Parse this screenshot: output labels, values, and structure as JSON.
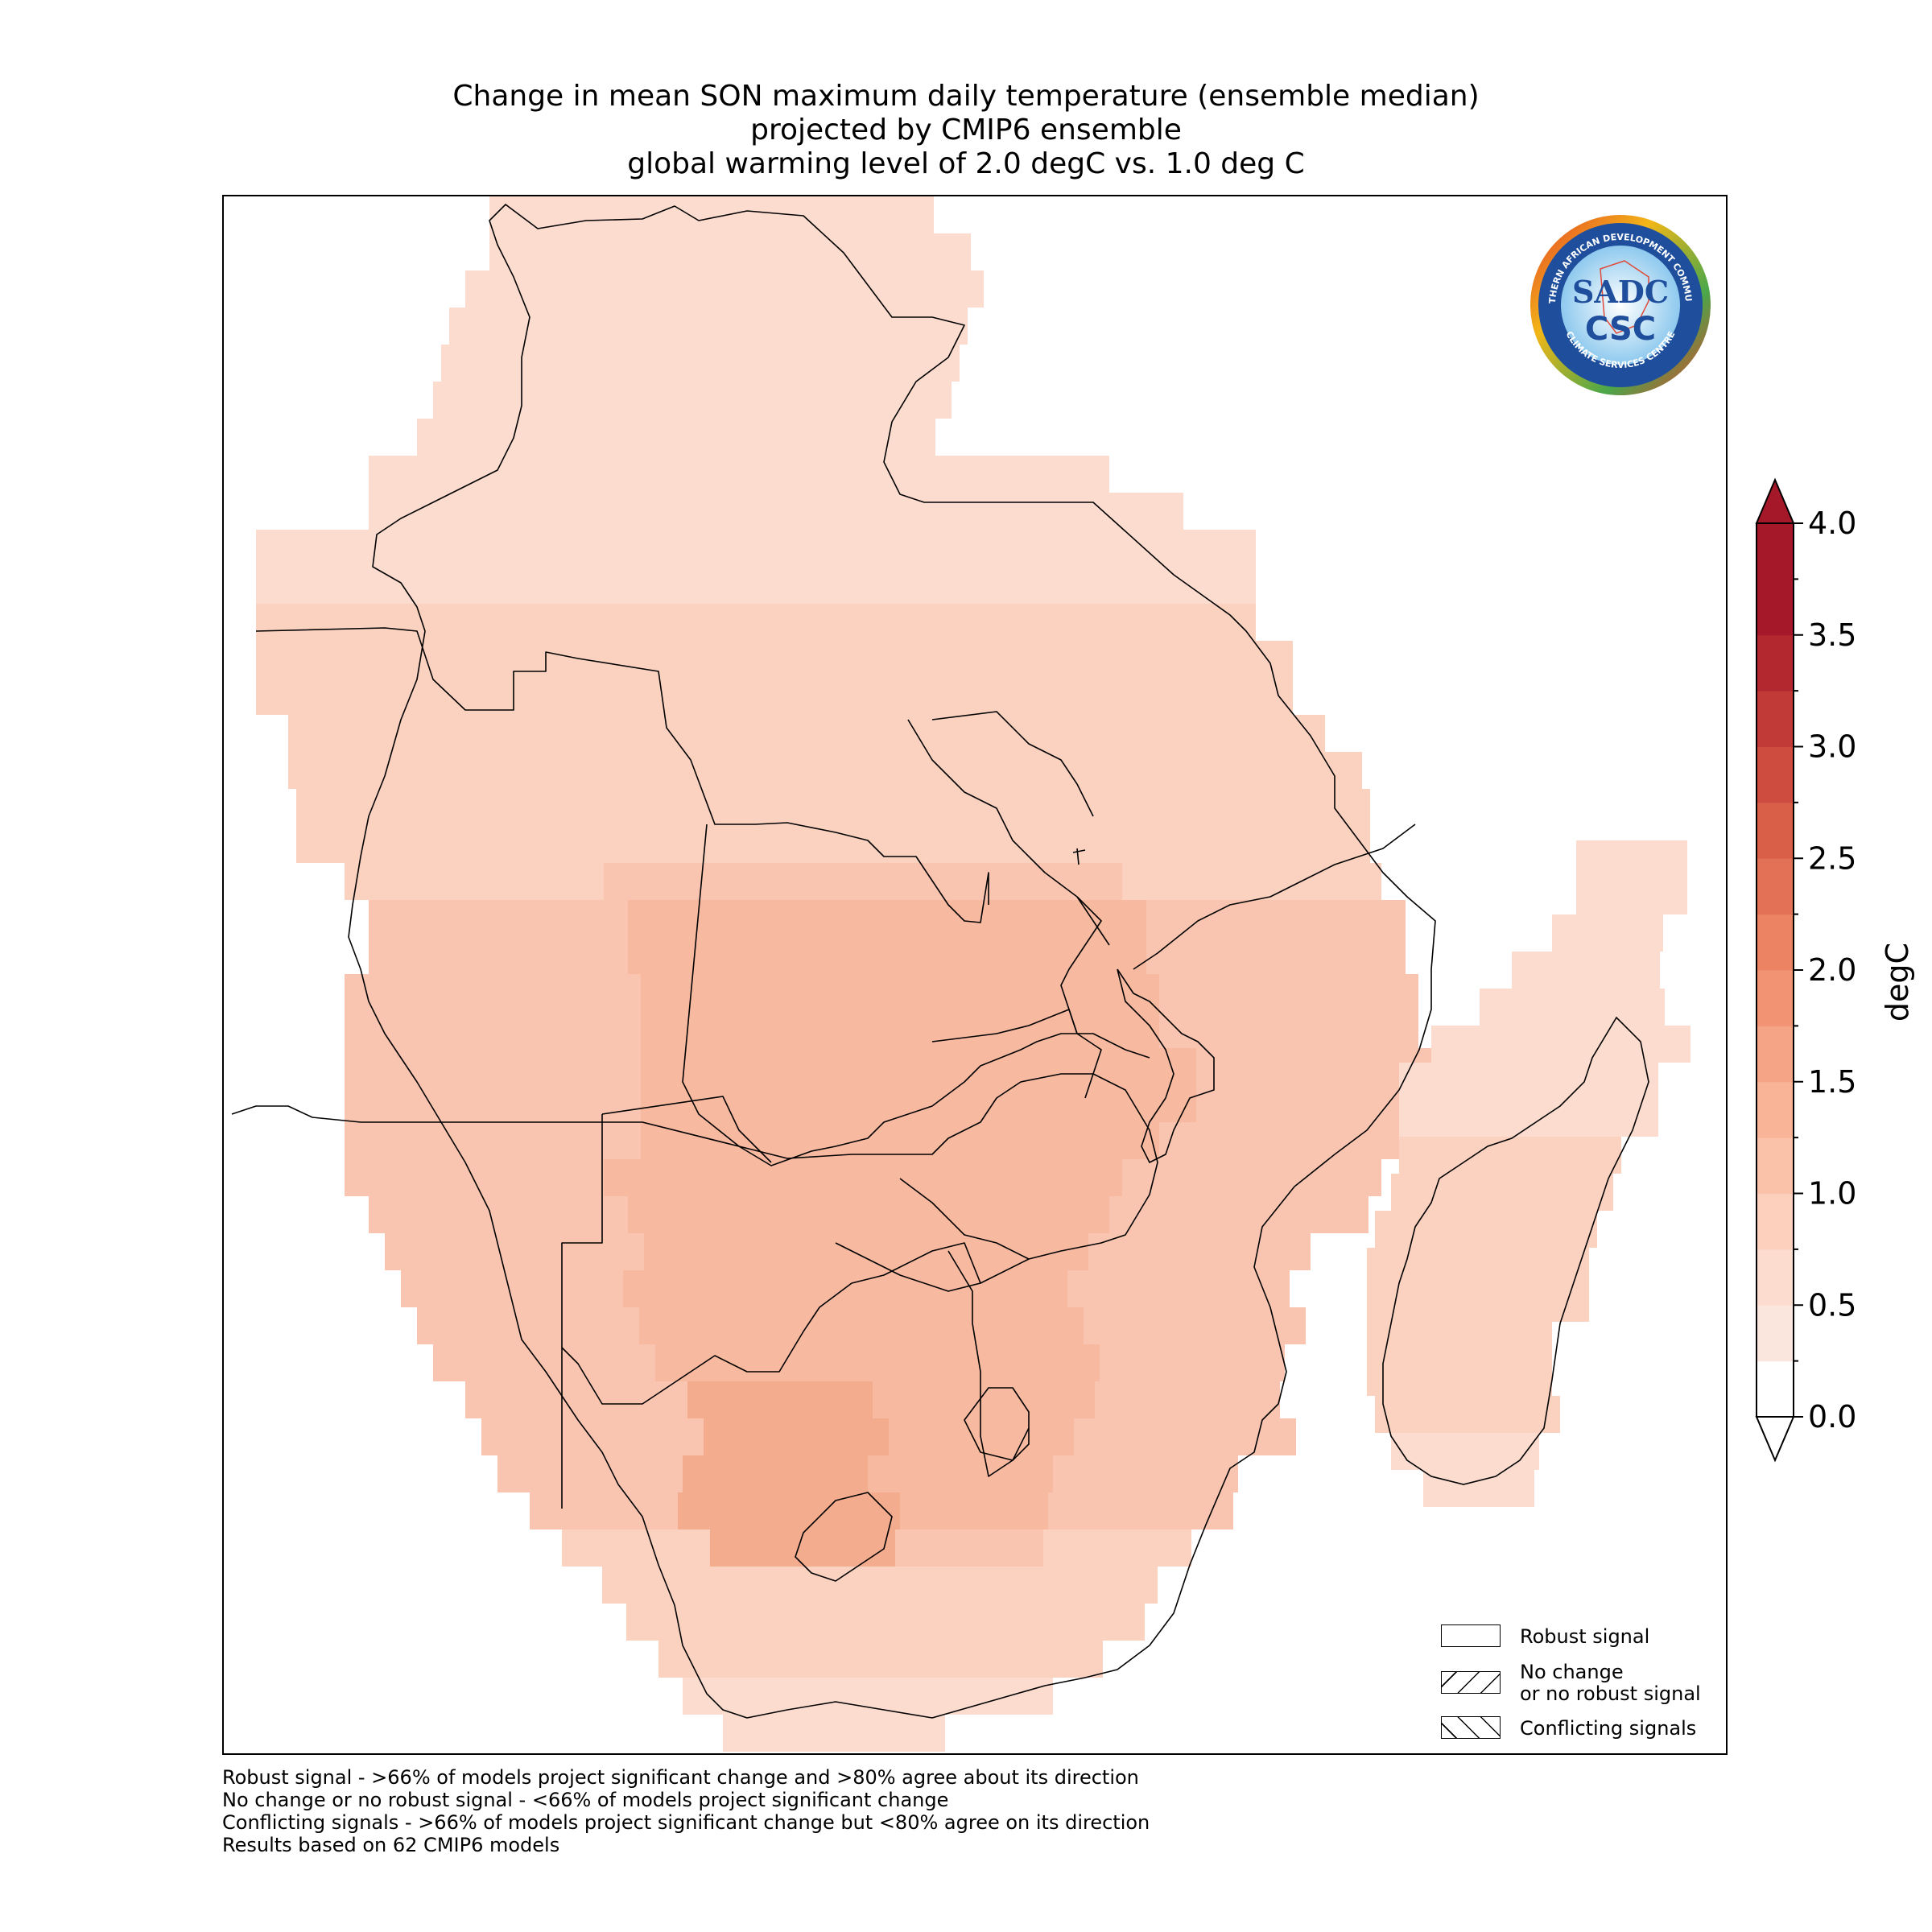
{
  "title": {
    "line1": "Change in mean SON maximum daily temperature (ensemble median)",
    "line2": "projected by CMIP6 ensemble",
    "line3": "global warming level of 2.0 degC vs. 1.0 deg C"
  },
  "colorbar": {
    "label": "degC",
    "ticks": [
      "0.0",
      "0.5",
      "1.0",
      "1.5",
      "2.0",
      "2.5",
      "3.0",
      "3.5",
      "4.0"
    ],
    "min": 0.0,
    "max": 4.0,
    "step": 0.25,
    "colors": [
      "#fbe6de",
      "#fcdccf",
      "#fcd0bd",
      "#fbc2aa",
      "#f9b498",
      "#f6a486",
      "#f29474",
      "#ec8363",
      "#e37155",
      "#d95f49",
      "#cd4c3f",
      "#c13a37",
      "#b3282f",
      "#a5182a"
    ]
  },
  "legend": {
    "robust": "Robust signal",
    "nochange_line1": "No change",
    "nochange_line2": "or no robust signal",
    "conflicting": "Conflicting signals"
  },
  "footnotes": [
    "Robust signal - >66% of models project significant change and >80% agree about its direction",
    "No change or no robust signal - <66% of models project significant change",
    "Conflicting signals - >66% of models project significant change but <80% agree on its direction",
    "Results based on 62 CMIP6 models"
  ],
  "logo": {
    "top_text": "SOUTHERN AFRICAN DEVELOPMENT COMMUNITY",
    "bottom_text": "CLIMATE SERVICES CENTRE",
    "mark": "SADC",
    "sub": "CSC",
    "icon": "sadc-csc-logo"
  }
}
